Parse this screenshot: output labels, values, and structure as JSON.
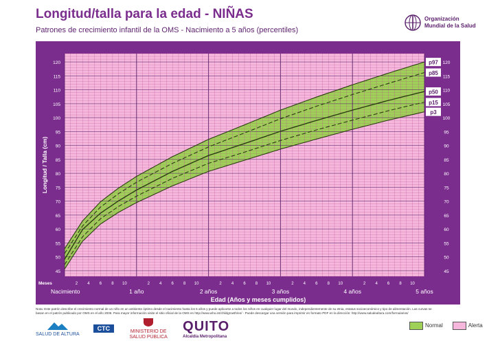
{
  "header": {
    "title": "Longitud/talla para la edad - NIÑAS",
    "subtitle": "Patrones de crecimiento infantil de la OMS - Nacimiento a 5 años (percentiles)",
    "org_line1": "Organización",
    "org_line2": "Mundial de la Salud"
  },
  "colors": {
    "frame": "#7b2d8e",
    "normal": "#9fd159",
    "alert": "#f5b8dc",
    "grid_normal": "#4f7d1c",
    "grid_alert": "#b33d8b"
  },
  "chart_data": {
    "type": "line",
    "title": "Longitud/talla para la edad - NIÑAS",
    "xlabel": "Edad (Años y meses cumplidos)",
    "ylabel": "Longitud / Talla (cm)",
    "months_label": "Meses",
    "xlim": [
      0,
      60
    ],
    "ylim": [
      43,
      123
    ],
    "y_ticks": [
      45,
      50,
      55,
      60,
      65,
      70,
      75,
      80,
      85,
      90,
      95,
      100,
      105,
      110,
      115,
      120
    ],
    "month_tick_labels": [
      "2",
      "4",
      "6",
      "8",
      "10",
      "2",
      "4",
      "6",
      "8",
      "10",
      "2",
      "4",
      "6",
      "8",
      "10",
      "2",
      "4",
      "6",
      "8",
      "10",
      "2",
      "4",
      "6",
      "8",
      "10"
    ],
    "year_labels": [
      "Nacimiento",
      "1 año",
      "2 años",
      "3 años",
      "4 años",
      "5 años"
    ],
    "x": [
      0,
      3,
      6,
      9,
      12,
      18,
      24,
      30,
      36,
      42,
      48,
      54,
      60
    ],
    "series": [
      {
        "name": "p97",
        "values": [
          52.9,
          62.9,
          69.8,
          74.7,
          78.9,
          86.0,
          92.2,
          97.4,
          102.7,
          107.4,
          111.8,
          116.0,
          120.0
        ]
      },
      {
        "name": "p85",
        "values": [
          51.2,
          61.1,
          67.9,
          72.7,
          76.8,
          83.6,
          89.5,
          94.5,
          99.6,
          104.1,
          108.3,
          112.3,
          116.2
        ]
      },
      {
        "name": "p50",
        "values": [
          49.1,
          59.8,
          65.7,
          70.1,
          74.0,
          80.7,
          86.4,
          90.7,
          95.1,
          99.0,
          102.7,
          106.2,
          109.4
        ]
      },
      {
        "name": "p15",
        "values": [
          47.2,
          57.2,
          63.7,
          68.1,
          71.8,
          78.2,
          83.6,
          87.6,
          91.8,
          95.6,
          99.1,
          102.5,
          105.6
        ]
      },
      {
        "name": "p3",
        "values": [
          45.6,
          55.6,
          61.8,
          66.0,
          69.5,
          75.5,
          80.7,
          84.7,
          88.7,
          92.3,
          95.8,
          99.1,
          102.1
        ]
      }
    ]
  },
  "note": "Nota: Este patrón describe el crecimiento normal de un niño en un ambiente óptimo desde el nacimiento hasta los 5 años y puede aplicarse a todos los niños en cualquier lugar del mundo, independientemente de su etnia, estatus socioeconómico y tipo de alimentación. Las curvas se basan en el patrón publicado por OMS en el año 2006. Para mayor información visite el sitio oficial de la OMS en http://www.who.int/childgrowth/en/ - Puede descargar una versión para imprimir en formato PDF en la dirección: http://www.saludealtura.com/formularios/",
  "logos": {
    "salud_altura": "SALUD DE ALTURA",
    "ctc": "CTC",
    "ministerio": "MINISTERIO DE SALUD PÚBLICA",
    "quito": "QUITO",
    "quito_sub": "Alcaldía Metropolitana"
  },
  "legend": {
    "normal": "Normal",
    "alert": "Alerta"
  }
}
